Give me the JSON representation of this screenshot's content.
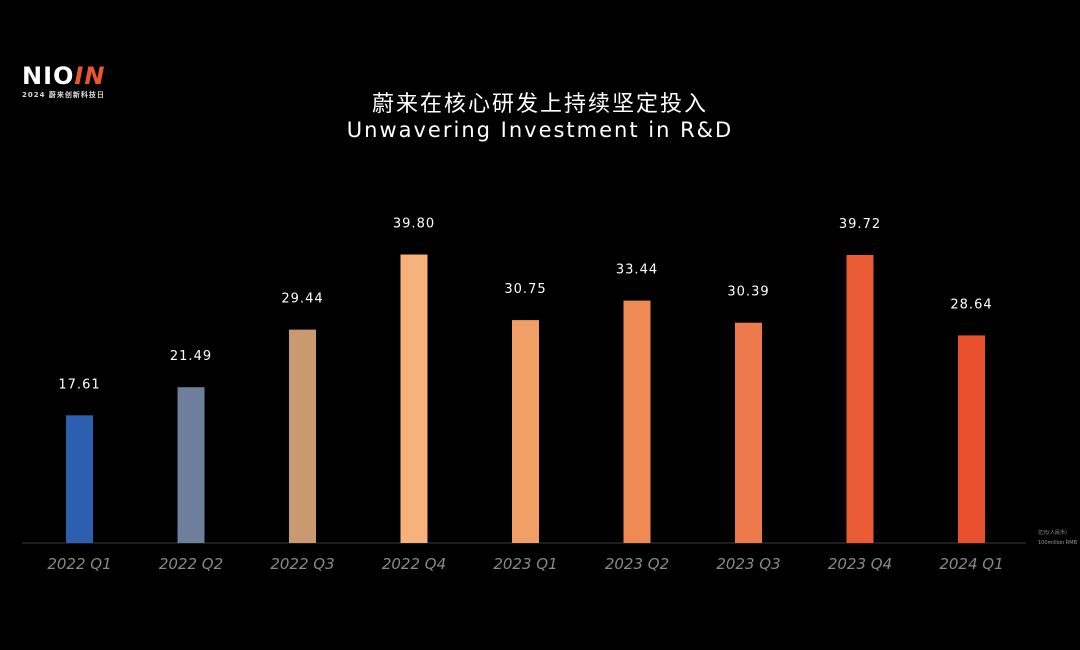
{
  "logo": {
    "main": "NIO",
    "accent": "IN",
    "sub": "2024 蔚来创新科技日"
  },
  "chart_data": {
    "type": "bar",
    "title": "蔚来在核心研发上持续坚定投入",
    "subtitle": "Unwavering Investment in R&D",
    "unit": "亿元(人民币)",
    "unit_en": "100million RMB",
    "categories": [
      "2022 Q1",
      "2022 Q2",
      "2022 Q3",
      "2022 Q4",
      "2023 Q1",
      "2023 Q2",
      "2023 Q3",
      "2023 Q4",
      "2024 Q1"
    ],
    "values": [
      17.61,
      21.49,
      29.44,
      39.8,
      30.75,
      33.44,
      30.39,
      39.72,
      28.64
    ],
    "value_labels": [
      "17.61",
      "21.49",
      "29.44",
      "39.80",
      "30.75",
      "33.44",
      "30.39",
      "39.72",
      "28.64"
    ],
    "colors": [
      "#2d5fb0",
      "#6e7f9c",
      "#c99a70",
      "#f6b27a",
      "#f19f67",
      "#ef8a55",
      "#ed7a4d",
      "#ea5b35",
      "#e8502e"
    ],
    "ylim": [
      0,
      40
    ],
    "grid": false,
    "legend": "none"
  }
}
